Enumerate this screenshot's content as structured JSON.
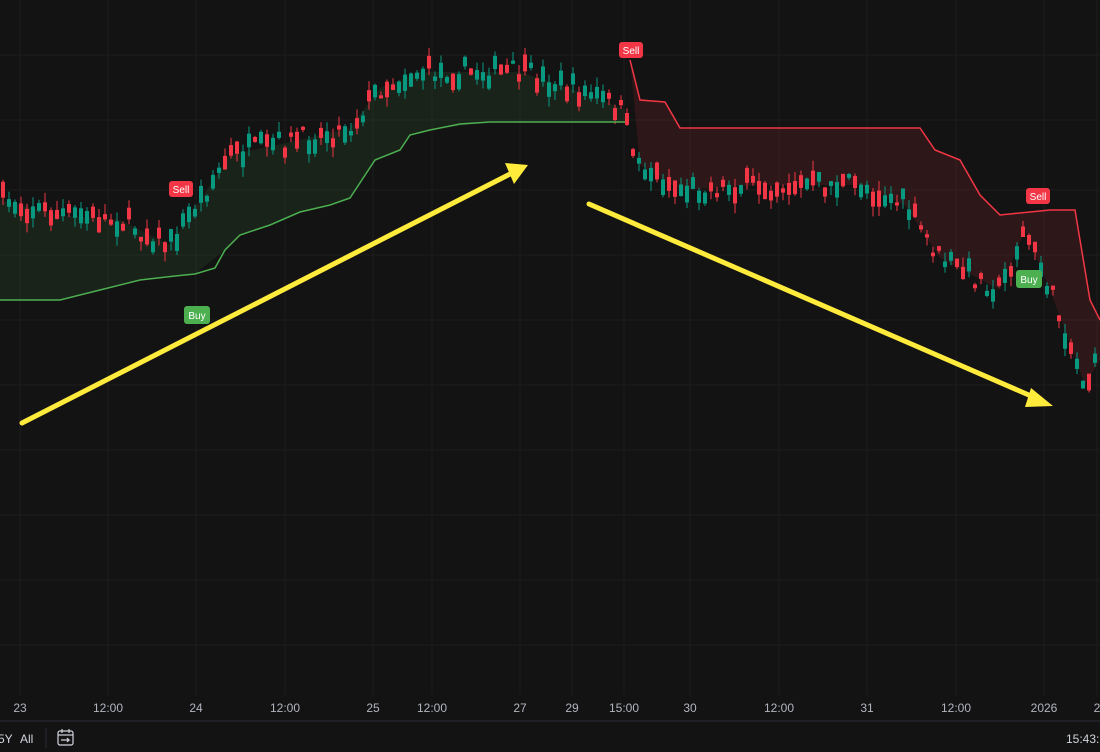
{
  "x_axis": {
    "labels": [
      "23",
      "12:00",
      "24",
      "12:00",
      "25",
      "12:00",
      "27",
      "29",
      "15:00",
      "30",
      "12:00",
      "31",
      "12:00",
      "2026",
      "2"
    ]
  },
  "signals": [
    {
      "label": "Sell"
    },
    {
      "label": "Buy"
    },
    {
      "label": "Sell"
    },
    {
      "label": "Sell"
    },
    {
      "label": "Buy"
    }
  ],
  "toolbar": {
    "range_buttons": [
      "5Y",
      "All"
    ],
    "clock": "15:43:"
  }
}
